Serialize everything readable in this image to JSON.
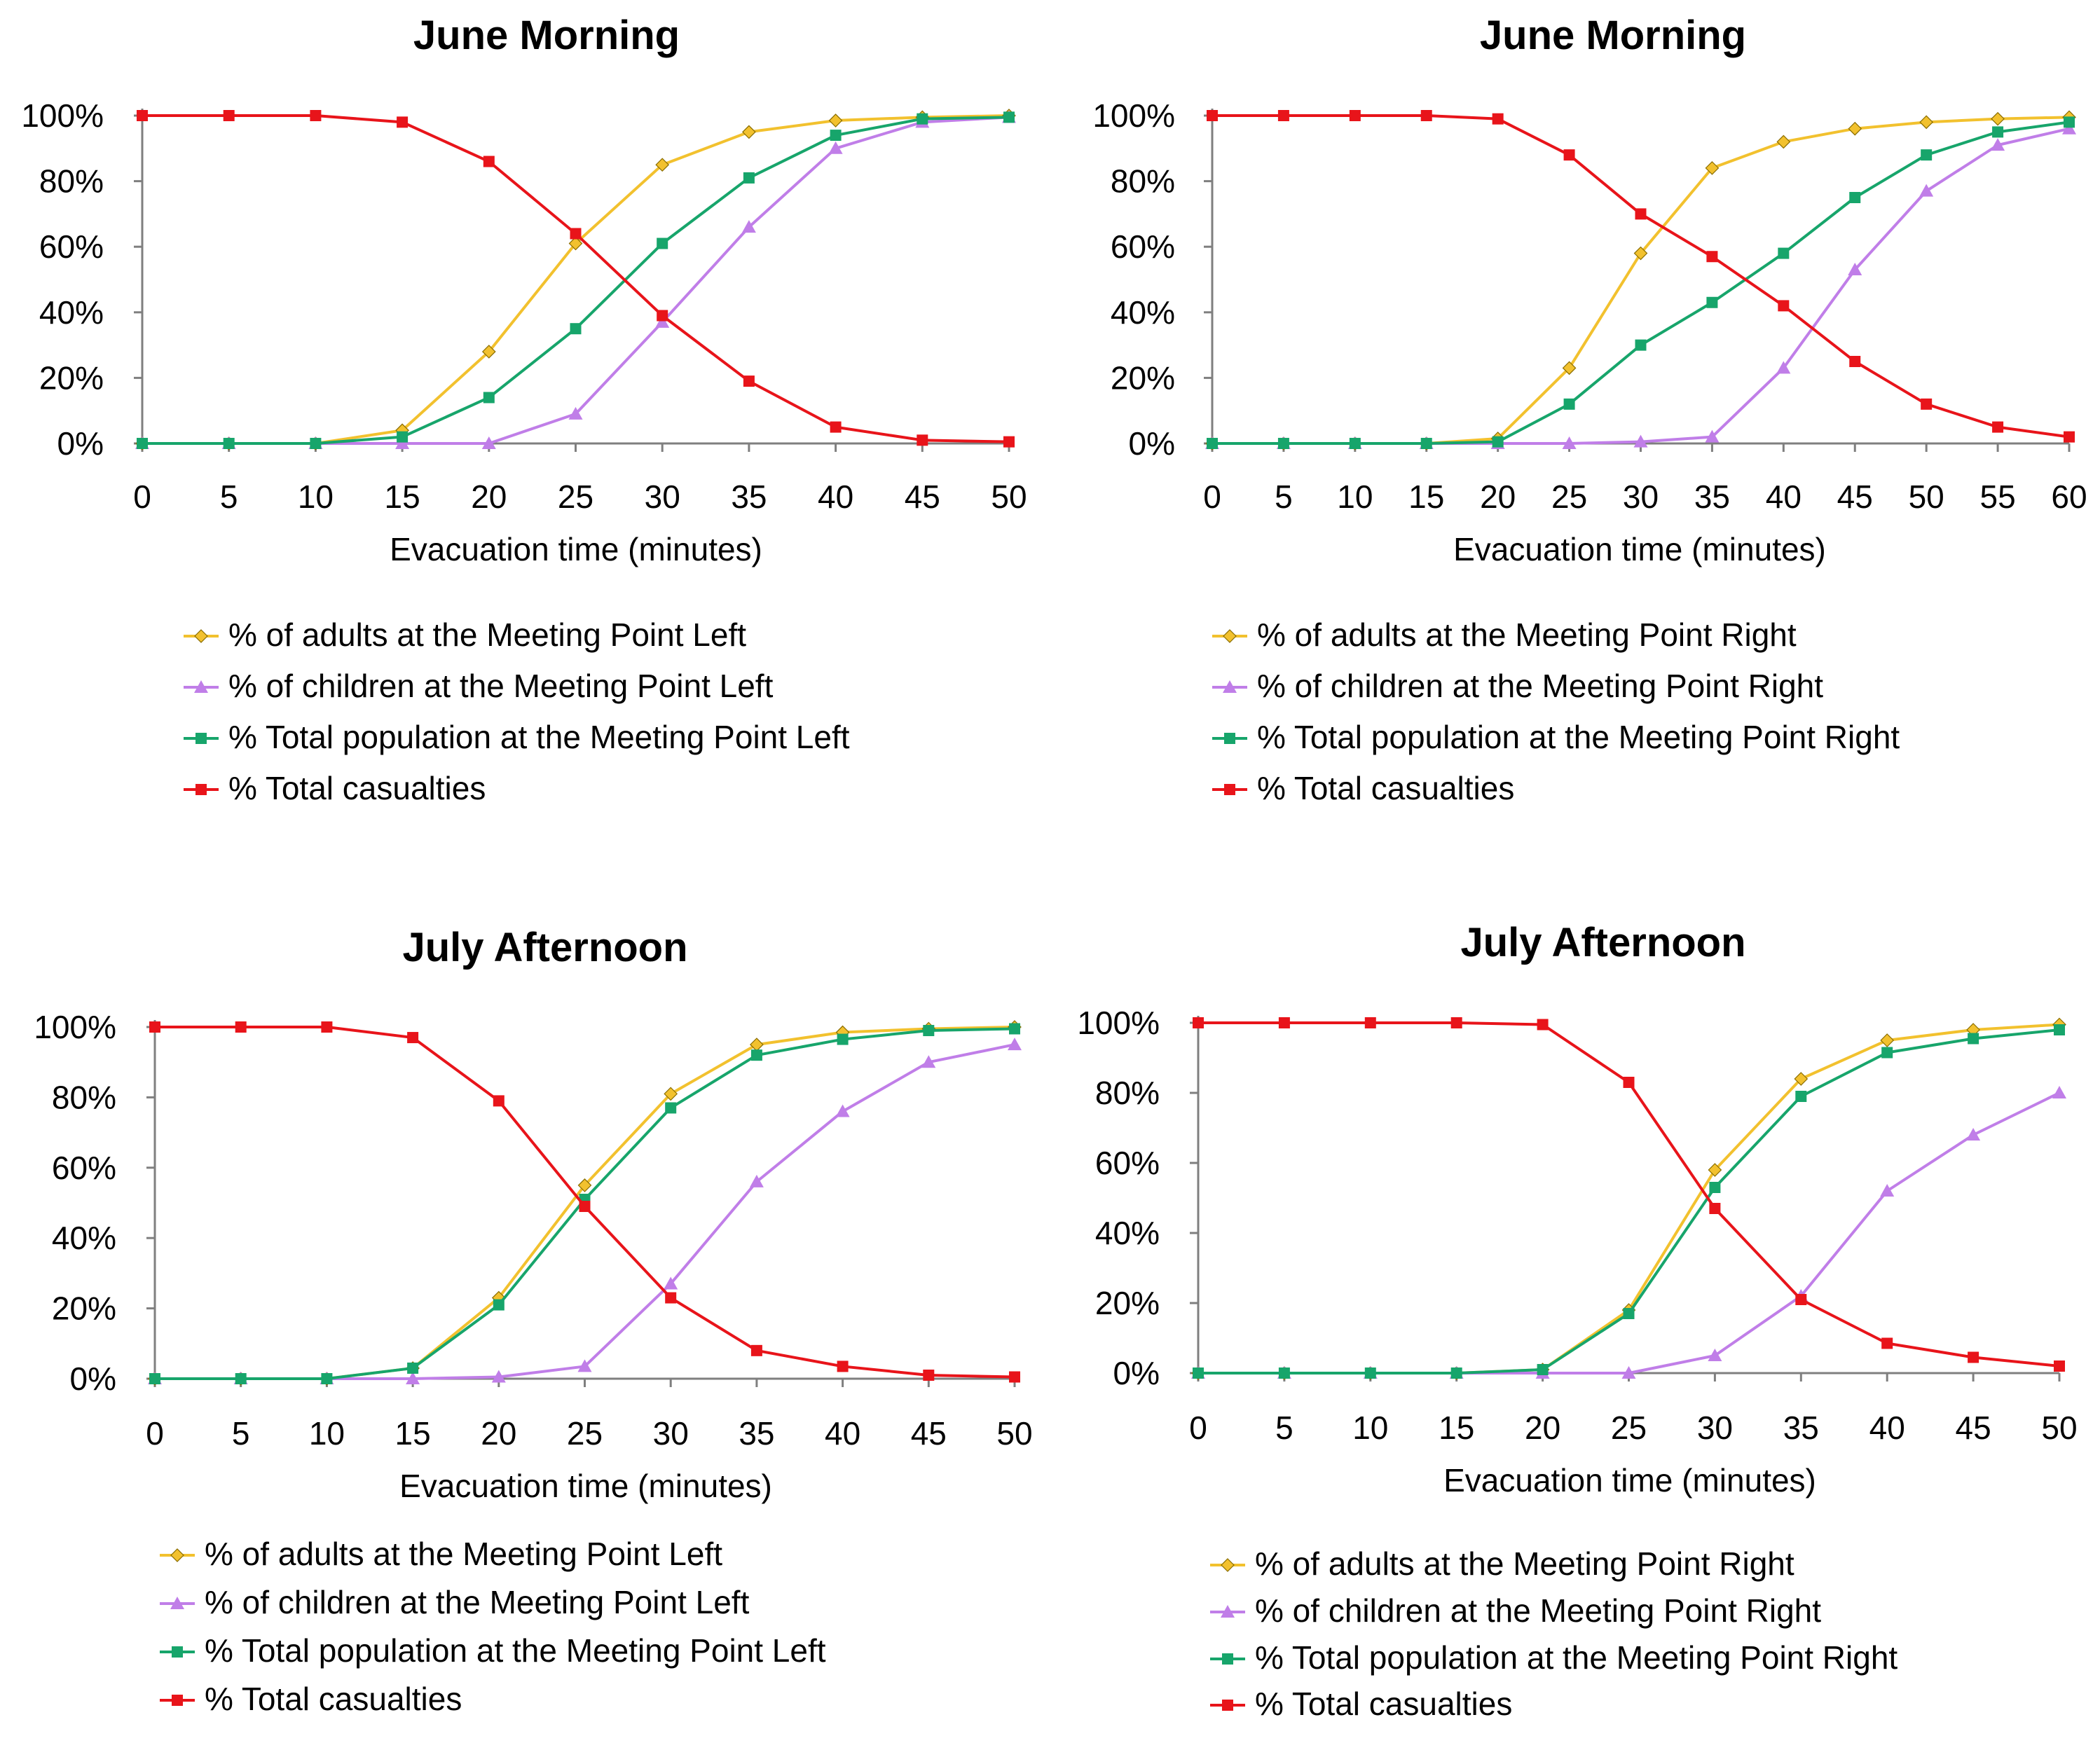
{
  "chart_data": [
    {
      "type": "line",
      "title": "June Morning",
      "xlabel": "Evacuation time (minutes)",
      "ylabel": "",
      "x": [
        0,
        5,
        10,
        15,
        20,
        25,
        30,
        35,
        40,
        45,
        50
      ],
      "ylim": [
        0,
        100
      ],
      "ytick_labels": [
        "0%",
        "20%",
        "40%",
        "60%",
        "80%",
        "100%"
      ],
      "legend_position": "below",
      "series": [
        {
          "name": "% of adults at the Meeting Point Left",
          "color": "#f2c12e",
          "marker": "diamond",
          "values": [
            0,
            0,
            0,
            4,
            28,
            61,
            85,
            95,
            98.5,
            99.5,
            100
          ]
        },
        {
          "name": "% of children at the Meeting Point Left",
          "color": "#c07ee8",
          "marker": "triangle",
          "values": [
            0,
            0,
            0,
            0,
            0,
            9,
            37,
            66,
            90,
            98,
            99.5
          ]
        },
        {
          "name": "% Total population at the Meeting Point Left",
          "color": "#17a56b",
          "marker": "square",
          "values": [
            0,
            0,
            0,
            2,
            14,
            35,
            61,
            81,
            94,
            99,
            99.5
          ]
        },
        {
          "name": "% Total casualties",
          "color": "#e8141a",
          "marker": "square",
          "values": [
            100,
            100,
            100,
            98,
            86,
            64,
            39,
            19,
            5,
            1,
            0.5
          ]
        }
      ]
    },
    {
      "type": "line",
      "title": "June Morning",
      "xlabel": "Evacuation time (minutes)",
      "ylabel": "",
      "x": [
        0,
        5,
        10,
        15,
        20,
        25,
        30,
        35,
        40,
        45,
        50,
        55,
        60
      ],
      "ylim": [
        0,
        100
      ],
      "ytick_labels": [
        "0%",
        "20%",
        "40%",
        "60%",
        "80%",
        "100%"
      ],
      "legend_position": "below",
      "series": [
        {
          "name": "% of adults at the Meeting Point Right",
          "color": "#f2c12e",
          "marker": "diamond",
          "values": [
            0,
            0,
            0,
            0,
            1.5,
            23,
            58,
            84,
            92,
            96,
            98,
            99,
            99.5
          ]
        },
        {
          "name": "% of children at the Meeting Point Right",
          "color": "#c07ee8",
          "marker": "triangle",
          "values": [
            0,
            0,
            0,
            0,
            0,
            0,
            0.5,
            2,
            23,
            53,
            77,
            91,
            96
          ]
        },
        {
          "name": "% Total population at the Meeting Point Right",
          "color": "#17a56b",
          "marker": "square",
          "values": [
            0,
            0,
            0,
            0,
            0.5,
            12,
            30,
            43,
            58,
            75,
            88,
            95,
            98
          ]
        },
        {
          "name": "% Total casualties",
          "color": "#e8141a",
          "marker": "square",
          "values": [
            100,
            100,
            100,
            100,
            99,
            88,
            70,
            57,
            42,
            25,
            12,
            5,
            2
          ]
        }
      ]
    },
    {
      "type": "line",
      "title": "July Afternoon",
      "xlabel": "Evacuation time (minutes)",
      "ylabel": "",
      "x": [
        0,
        5,
        10,
        15,
        20,
        25,
        30,
        35,
        40,
        45,
        50
      ],
      "ylim": [
        0,
        100
      ],
      "ytick_labels": [
        "0%",
        "20%",
        "40%",
        "60%",
        "80%",
        "100%"
      ],
      "legend_position": "below",
      "series": [
        {
          "name": "% of adults at the Meeting Point Left",
          "color": "#f2c12e",
          "marker": "diamond",
          "values": [
            0,
            0,
            0,
            3,
            23,
            55,
            81,
            95,
            98.5,
            99.5,
            100
          ]
        },
        {
          "name": "% of children at the Meeting Point Left",
          "color": "#c07ee8",
          "marker": "triangle",
          "values": [
            0,
            0,
            0,
            0,
            0.5,
            3.5,
            27,
            56,
            76,
            90,
            95
          ]
        },
        {
          "name": "% Total population at the Meeting Point Left",
          "color": "#17a56b",
          "marker": "square",
          "values": [
            0,
            0,
            0,
            3,
            21,
            51,
            77,
            92,
            96.5,
            99,
            99.5
          ]
        },
        {
          "name": "% Total casualties",
          "color": "#e8141a",
          "marker": "square",
          "values": [
            100,
            100,
            100,
            97,
            79,
            49,
            23,
            8,
            3.5,
            1,
            0.5
          ]
        }
      ]
    },
    {
      "type": "line",
      "title": "July Afternoon",
      "xlabel": "Evacuation time (minutes)",
      "ylabel": "",
      "x": [
        0,
        5,
        10,
        15,
        20,
        25,
        30,
        35,
        40,
        45,
        50
      ],
      "ylim": [
        0,
        100
      ],
      "ytick_labels": [
        "0%",
        "20%",
        "40%",
        "60%",
        "80%",
        "100%"
      ],
      "legend_position": "below",
      "series": [
        {
          "name": "% of adults at the Meeting Point Right",
          "color": "#f2c12e",
          "marker": "diamond",
          "values": [
            0,
            0,
            0,
            0,
            1,
            18,
            58,
            84,
            95,
            98,
            99.5
          ]
        },
        {
          "name": "% of children at the Meeting Point Right",
          "color": "#c07ee8",
          "marker": "triangle",
          "values": [
            0,
            0,
            0,
            0,
            0,
            0,
            5,
            22,
            52,
            68,
            80
          ]
        },
        {
          "name": "% Total population at the Meeting Point Right",
          "color": "#17a56b",
          "marker": "square",
          "values": [
            0,
            0,
            0,
            0,
            1,
            17,
            53,
            79,
            91.5,
            95.5,
            98
          ]
        },
        {
          "name": "% Total casualties",
          "color": "#e8141a",
          "marker": "square",
          "values": [
            100,
            100,
            100,
            100,
            99.5,
            83,
            47,
            21,
            8.5,
            4.5,
            2
          ]
        }
      ]
    }
  ]
}
